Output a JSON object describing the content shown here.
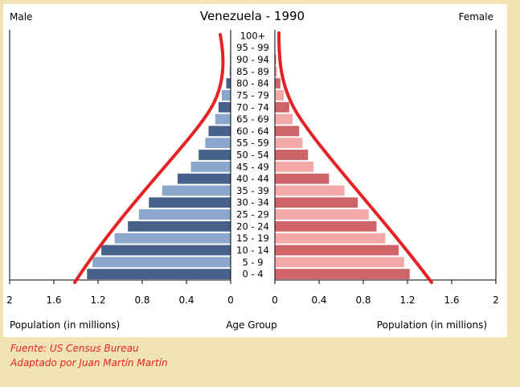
{
  "chart_data": {
    "type": "bar",
    "orientation": "population-pyramid",
    "title": "Venezuela - 1990",
    "left_label": "Male",
    "right_label": "Female",
    "xlabel_left": "Population (in millions)",
    "xlabel_center": "Age Group",
    "xlabel_right": "Population (in millions)",
    "xlim": [
      0,
      2
    ],
    "x_ticks": [
      "2",
      "1.6",
      "1.2",
      "0.8",
      "0.4",
      "0"
    ],
    "x_ticks_right": [
      "0",
      "0.4",
      "0.8",
      "1.2",
      "1.6",
      "2"
    ],
    "categories": [
      "0 - 4",
      "5 - 9",
      "10 - 14",
      "15 - 19",
      "20 - 24",
      "25 - 29",
      "30 - 34",
      "35 - 39",
      "40 - 44",
      "45 - 49",
      "50 - 54",
      "55 - 59",
      "60 - 64",
      "65 - 69",
      "70 - 74",
      "75 - 79",
      "80 - 84",
      "85 - 89",
      "90 - 94",
      "95 - 99",
      "100+"
    ],
    "series": [
      {
        "name": "Male",
        "values": [
          1.3,
          1.25,
          1.17,
          1.05,
          0.93,
          0.83,
          0.74,
          0.62,
          0.48,
          0.36,
          0.29,
          0.23,
          0.2,
          0.14,
          0.11,
          0.08,
          0.04,
          0.01,
          0.005,
          0.002,
          0.001
        ],
        "colors": [
          "#46628b",
          "#8ba7cb"
        ]
      },
      {
        "name": "Female",
        "values": [
          1.22,
          1.17,
          1.12,
          1.0,
          0.92,
          0.85,
          0.75,
          0.63,
          0.49,
          0.35,
          0.3,
          0.25,
          0.22,
          0.16,
          0.13,
          0.08,
          0.05,
          0.02,
          0.01,
          0.003,
          0.001
        ],
        "colors": [
          "#cf6468",
          "#f4a9a9"
        ]
      }
    ],
    "annotation_curve_color": "#e62224",
    "grid": false
  },
  "footer": {
    "source": "Fuente: US Census Bureau",
    "adapted": "Adaptado por Juan Martín Martín"
  }
}
